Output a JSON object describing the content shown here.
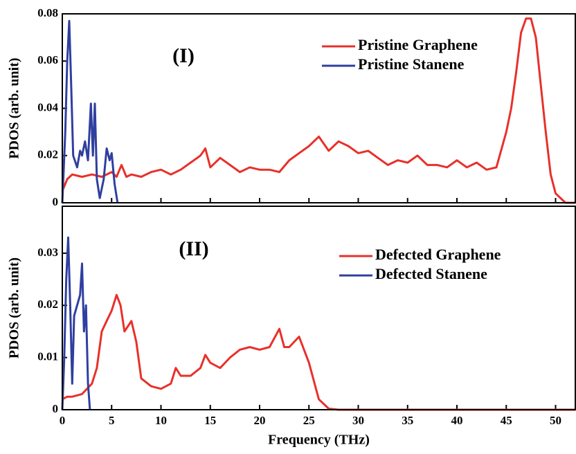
{
  "chart_data": [
    {
      "type": "line",
      "annotation": "(I)",
      "ylabel": "PDOS (arb. unit)",
      "xlim": [
        0,
        52
      ],
      "xticks": [
        0,
        5,
        10,
        15,
        20,
        25,
        30,
        35,
        40,
        45,
        50
      ],
      "ylim": [
        0,
        0.08
      ],
      "yticks": [
        0,
        0.02,
        0.04,
        0.06,
        0.08
      ],
      "legend": "upper right",
      "series": [
        {
          "name": "Pristine Graphene",
          "color": "#e8302a",
          "x": [
            0,
            0.5,
            1,
            2,
            3,
            4,
            5,
            5.5,
            6,
            6.5,
            7,
            8,
            9,
            10,
            11,
            12,
            13,
            14,
            14.5,
            15,
            16,
            17,
            18,
            19,
            20,
            21,
            22,
            23,
            24,
            25,
            26,
            27,
            28,
            29,
            30,
            31,
            32,
            33,
            34,
            35,
            36,
            37,
            38,
            39,
            40,
            41,
            42,
            43,
            44,
            45,
            45.5,
            46,
            46.5,
            47,
            47.5,
            48,
            48.5,
            49,
            49.5,
            50,
            51,
            52
          ],
          "values": [
            0.005,
            0.01,
            0.012,
            0.011,
            0.012,
            0.011,
            0.013,
            0.011,
            0.016,
            0.011,
            0.012,
            0.011,
            0.013,
            0.014,
            0.012,
            0.014,
            0.017,
            0.02,
            0.023,
            0.015,
            0.019,
            0.016,
            0.013,
            0.015,
            0.014,
            0.014,
            0.013,
            0.018,
            0.021,
            0.024,
            0.028,
            0.022,
            0.026,
            0.024,
            0.021,
            0.022,
            0.019,
            0.016,
            0.018,
            0.017,
            0.02,
            0.016,
            0.016,
            0.015,
            0.018,
            0.015,
            0.017,
            0.014,
            0.015,
            0.03,
            0.04,
            0.055,
            0.072,
            0.078,
            0.078,
            0.07,
            0.05,
            0.03,
            0.012,
            0.004,
            0,
            0
          ]
        },
        {
          "name": "Pristine Stanene",
          "color": "#2f3f9f",
          "x": [
            0,
            0.3,
            0.5,
            0.7,
            0.9,
            1.1,
            1.5,
            1.8,
            2,
            2.3,
            2.6,
            2.9,
            3.1,
            3.3,
            3.5,
            3.8,
            4.2,
            4.5,
            4.8,
            5,
            5.3,
            5.6
          ],
          "values": [
            0,
            0.03,
            0.06,
            0.077,
            0.05,
            0.02,
            0.015,
            0.022,
            0.02,
            0.026,
            0.018,
            0.042,
            0.02,
            0.042,
            0.01,
            0.002,
            0.01,
            0.023,
            0.018,
            0.021,
            0.008,
            0
          ]
        }
      ]
    },
    {
      "type": "line",
      "annotation": "(II)",
      "ylabel": "PDOS (arb. unit)",
      "xlabel": "Frequency (THz)",
      "xlim": [
        0,
        52
      ],
      "xticks": [
        0,
        5,
        10,
        15,
        20,
        25,
        30,
        35,
        40,
        45,
        50
      ],
      "ylim": [
        0,
        0.039
      ],
      "yticks": [
        0,
        0.01,
        0.02,
        0.03
      ],
      "legend": "upper right",
      "series": [
        {
          "name": "Defected Graphene",
          "color": "#e8302a",
          "x": [
            0,
            0.5,
            1,
            2,
            3,
            3.5,
            4,
            4.5,
            5,
            5.5,
            5.9,
            6.3,
            7,
            7.5,
            8,
            9,
            10,
            11,
            11.5,
            12,
            13,
            14,
            14.5,
            15,
            16,
            17,
            18,
            19,
            20,
            21,
            22,
            22.5,
            23,
            24,
            25,
            26,
            27,
            28,
            52
          ],
          "values": [
            0.002,
            0.0025,
            0.0025,
            0.003,
            0.005,
            0.008,
            0.015,
            0.017,
            0.019,
            0.022,
            0.02,
            0.015,
            0.017,
            0.013,
            0.006,
            0.0045,
            0.004,
            0.005,
            0.008,
            0.0065,
            0.0065,
            0.008,
            0.0105,
            0.009,
            0.008,
            0.01,
            0.0115,
            0.012,
            0.0115,
            0.012,
            0.0155,
            0.012,
            0.012,
            0.014,
            0.009,
            0.002,
            0.0002,
            0,
            0
          ]
        },
        {
          "name": "Defected Stanene",
          "color": "#2f3f9f",
          "x": [
            0,
            0.2,
            0.4,
            0.6,
            0.8,
            1,
            1.2,
            1.5,
            1.8,
            2,
            2.2,
            2.4,
            2.6,
            2.8
          ],
          "values": [
            0,
            0.01,
            0.025,
            0.033,
            0.02,
            0.005,
            0.018,
            0.02,
            0.022,
            0.028,
            0.015,
            0.02,
            0.005,
            0
          ]
        }
      ]
    }
  ]
}
